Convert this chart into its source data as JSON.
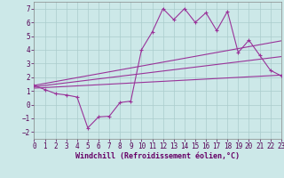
{
  "bg_color": "#cce8e8",
  "grid_color": "#aacccc",
  "line_color": "#993399",
  "xlim": [
    0,
    23
  ],
  "ylim": [
    -2.5,
    7.5
  ],
  "xticks": [
    0,
    1,
    2,
    3,
    4,
    5,
    6,
    7,
    8,
    9,
    10,
    11,
    12,
    13,
    14,
    15,
    16,
    17,
    18,
    19,
    20,
    21,
    22,
    23
  ],
  "yticks": [
    -2,
    -1,
    0,
    1,
    2,
    3,
    4,
    5,
    6,
    7
  ],
  "xlabel": "Windchill (Refroidissement éolien,°C)",
  "series1_x": [
    0,
    1,
    2,
    3,
    4,
    5,
    6,
    7,
    8,
    9,
    10,
    11,
    12,
    13,
    14,
    15,
    16,
    17,
    18,
    19,
    20,
    21,
    22,
    23
  ],
  "series1_y": [
    1.4,
    1.1,
    0.8,
    0.7,
    0.55,
    -1.7,
    -0.9,
    -0.85,
    0.15,
    0.25,
    4.0,
    5.3,
    7.0,
    6.2,
    7.0,
    6.0,
    6.7,
    5.4,
    6.8,
    3.8,
    4.7,
    3.6,
    2.5,
    2.1
  ],
  "line2_x0": 0,
  "line2_x1": 23,
  "line2_y0": 1.4,
  "line2_y1": 4.65,
  "line3_x0": 0,
  "line3_x1": 23,
  "line3_y0": 1.3,
  "line3_y1": 3.5,
  "line4_x0": 0,
  "line4_x1": 23,
  "line4_y0": 1.2,
  "line4_y1": 2.15,
  "tick_fontsize": 5.5,
  "xlabel_fontsize": 6,
  "xlabel_color": "#660066"
}
